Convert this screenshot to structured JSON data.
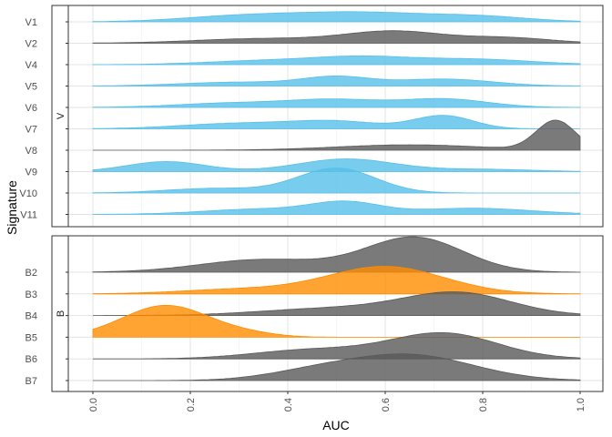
{
  "chart_data": {
    "type": "ridgeline",
    "xlabel": "AUC",
    "ylabel": "Signature",
    "xlim": [
      0,
      1
    ],
    "x_ticks": [
      0.0,
      0.2,
      0.4,
      0.6,
      0.8,
      1.0
    ],
    "x_tick_labels": [
      "0.0",
      "0.2",
      "0.4",
      "0.6",
      "0.8",
      "1.0"
    ],
    "grid": true,
    "colors": {
      "blue": "#56bfe9",
      "grey": "#595959",
      "orange": "#ff8c00"
    },
    "panels": [
      {
        "label": "V",
        "rows": [
          {
            "name": "V1",
            "color": "blue",
            "peaks": [
              [
                0.3,
                0.12,
                0.35
              ],
              [
                0.55,
                0.14,
                0.6
              ],
              [
                0.8,
                0.1,
                0.3
              ]
            ]
          },
          {
            "name": "V2",
            "color": "grey",
            "peaks": [
              [
                0.35,
                0.14,
                0.3
              ],
              [
                0.62,
                0.1,
                0.75
              ],
              [
                0.85,
                0.09,
                0.35
              ]
            ]
          },
          {
            "name": "V4",
            "color": "blue",
            "peaks": [
              [
                0.35,
                0.12,
                0.25
              ],
              [
                0.55,
                0.1,
                0.45
              ],
              [
                0.78,
                0.12,
                0.35
              ]
            ]
          },
          {
            "name": "V5",
            "color": "blue",
            "peaks": [
              [
                0.3,
                0.12,
                0.25
              ],
              [
                0.5,
                0.07,
                0.55
              ],
              [
                0.72,
                0.1,
                0.45
              ]
            ]
          },
          {
            "name": "V6",
            "color": "blue",
            "peaks": [
              [
                0.3,
                0.12,
                0.3
              ],
              [
                0.5,
                0.09,
                0.45
              ],
              [
                0.72,
                0.09,
                0.55
              ]
            ]
          },
          {
            "name": "V7",
            "color": "blue",
            "peaks": [
              [
                0.3,
                0.12,
                0.35
              ],
              [
                0.5,
                0.09,
                0.45
              ],
              [
                0.72,
                0.06,
                0.85
              ]
            ]
          },
          {
            "name": "V8",
            "color": "grey",
            "peaks": [
              [
                0.65,
                0.15,
                0.35
              ],
              [
                0.95,
                0.04,
                1.9
              ]
            ]
          },
          {
            "name": "V9",
            "color": "blue",
            "peaks": [
              [
                0.15,
                0.08,
                0.65
              ],
              [
                0.52,
                0.1,
                0.82
              ],
              [
                0.8,
                0.1,
                0.15
              ]
            ]
          },
          {
            "name": "V10",
            "color": "blue",
            "peaks": [
              [
                0.25,
                0.1,
                0.3
              ],
              [
                0.5,
                0.08,
                1.6
              ]
            ]
          },
          {
            "name": "V11",
            "color": "blue",
            "peaks": [
              [
                0.35,
                0.12,
                0.35
              ],
              [
                0.52,
                0.07,
                0.7
              ],
              [
                0.78,
                0.12,
                0.4
              ]
            ]
          }
        ]
      },
      {
        "label": "B",
        "rows": [
          {
            "name": "B2",
            "color": "grey",
            "peaks": [
              [
                0.35,
                0.13,
                0.7
              ],
              [
                0.66,
                0.1,
                1.9
              ]
            ]
          },
          {
            "name": "B3",
            "color": "orange",
            "peaks": [
              [
                0.3,
                0.12,
                0.25
              ],
              [
                0.6,
                0.12,
                1.5
              ]
            ]
          },
          {
            "name": "B4",
            "color": "grey",
            "peaks": [
              [
                0.5,
                0.15,
                0.4
              ],
              [
                0.75,
                0.11,
                1.2
              ]
            ]
          },
          {
            "name": "B5",
            "color": "orange",
            "peaks": [
              [
                0.15,
                0.09,
                1.75
              ],
              [
                0.32,
                0.06,
                0.15
              ]
            ]
          },
          {
            "name": "B6",
            "color": "grey",
            "peaks": [
              [
                0.45,
                0.12,
                0.5
              ],
              [
                0.72,
                0.11,
                1.4
              ]
            ]
          },
          {
            "name": "B7",
            "color": "grey",
            "peaks": [
              [
                0.45,
                0.1,
                0.4
              ],
              [
                0.65,
                0.13,
                1.4
              ]
            ]
          }
        ]
      }
    ]
  }
}
